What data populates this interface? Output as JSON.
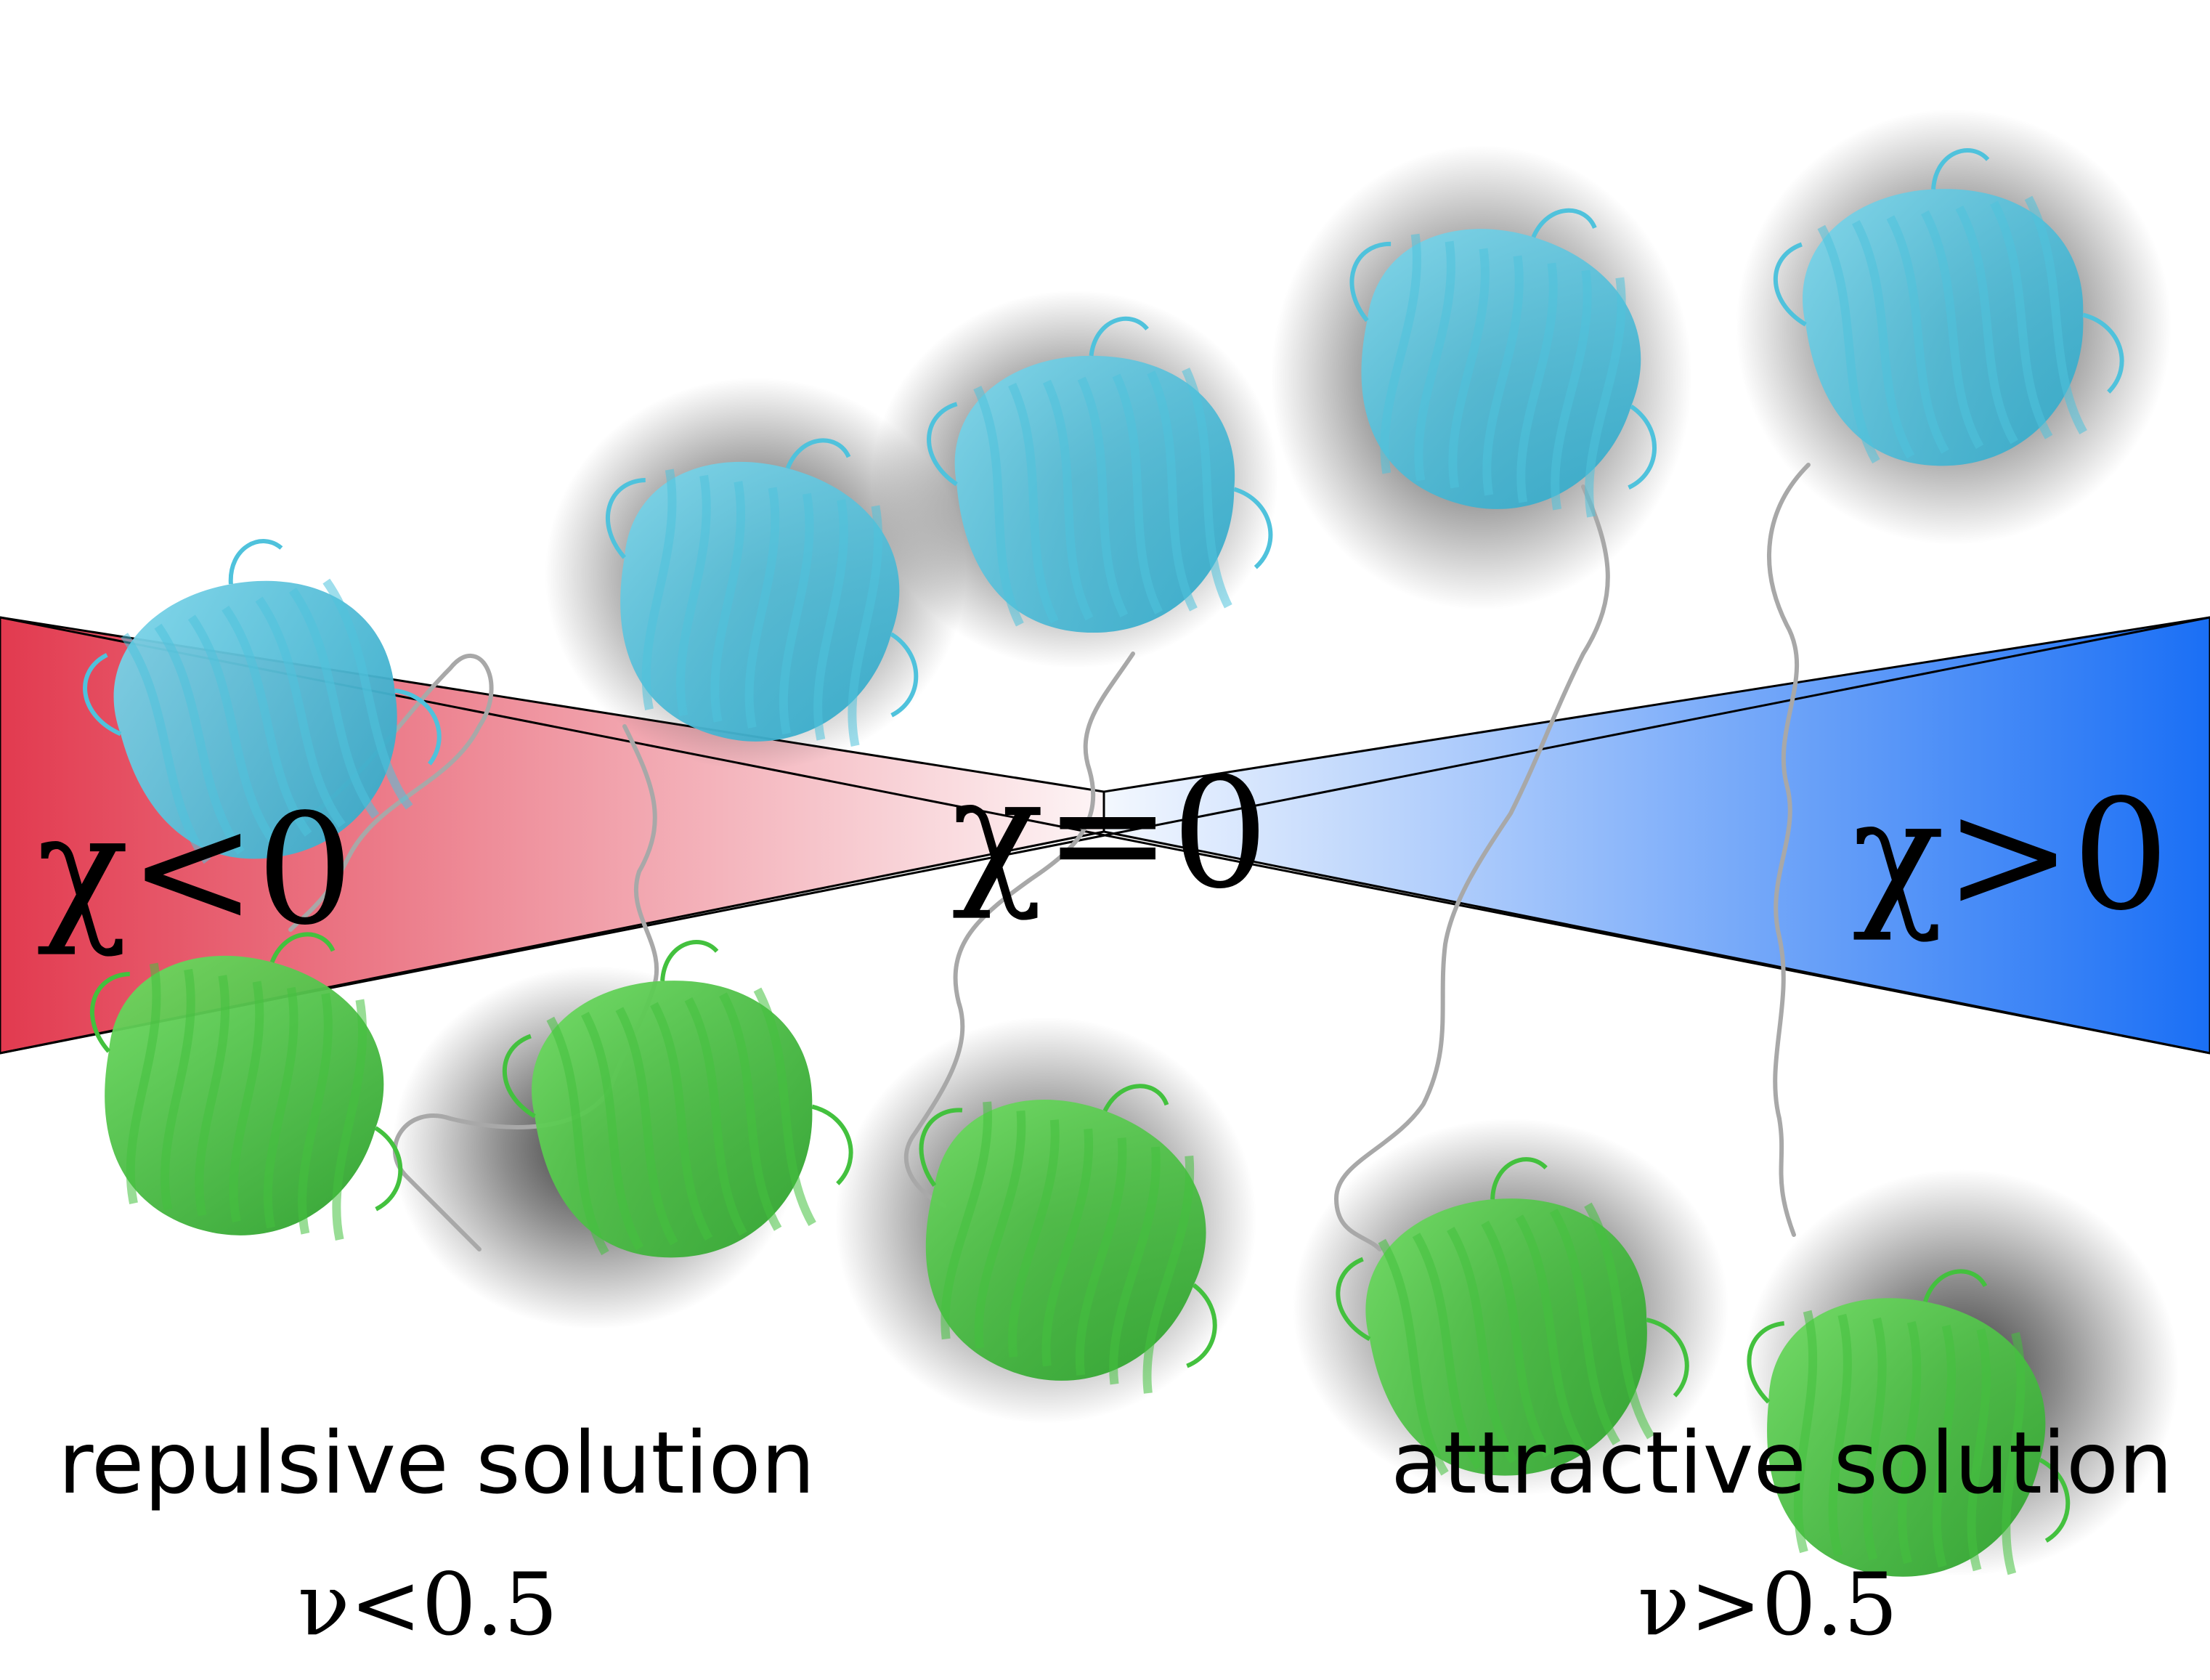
{
  "labels": {
    "chi_negative": "χ<0",
    "chi_zero": "χ=0",
    "chi_positive": "χ>0",
    "repulsive": "repulsive solution",
    "nu_low": "ν<0.5",
    "attractive": "attractive solution",
    "nu_high": "ν>0.5"
  },
  "colors": {
    "repulsive_wedge": "#e23a4f",
    "attractive_wedge": "#1a6ff5",
    "protein_top": "#4fc2dc",
    "protein_bottom": "#43c13e",
    "linker": "#a8a8a8",
    "shadow": "#2e2e2e"
  },
  "proteins": [
    {
      "name": "protein-pair-1",
      "top_icon": "cyan-beta-barrel-icon",
      "bottom_icon": "green-beta-barrel-icon"
    },
    {
      "name": "protein-pair-2",
      "top_icon": "cyan-beta-barrel-icon",
      "bottom_icon": "green-beta-barrel-icon"
    },
    {
      "name": "protein-pair-3",
      "top_icon": "cyan-beta-barrel-icon",
      "bottom_icon": "green-beta-barrel-icon"
    },
    {
      "name": "protein-pair-4",
      "top_icon": "cyan-beta-barrel-icon",
      "bottom_icon": "green-beta-barrel-icon"
    },
    {
      "name": "protein-pair-5",
      "top_icon": "cyan-beta-barrel-icon",
      "bottom_icon": "green-beta-barrel-icon"
    }
  ]
}
